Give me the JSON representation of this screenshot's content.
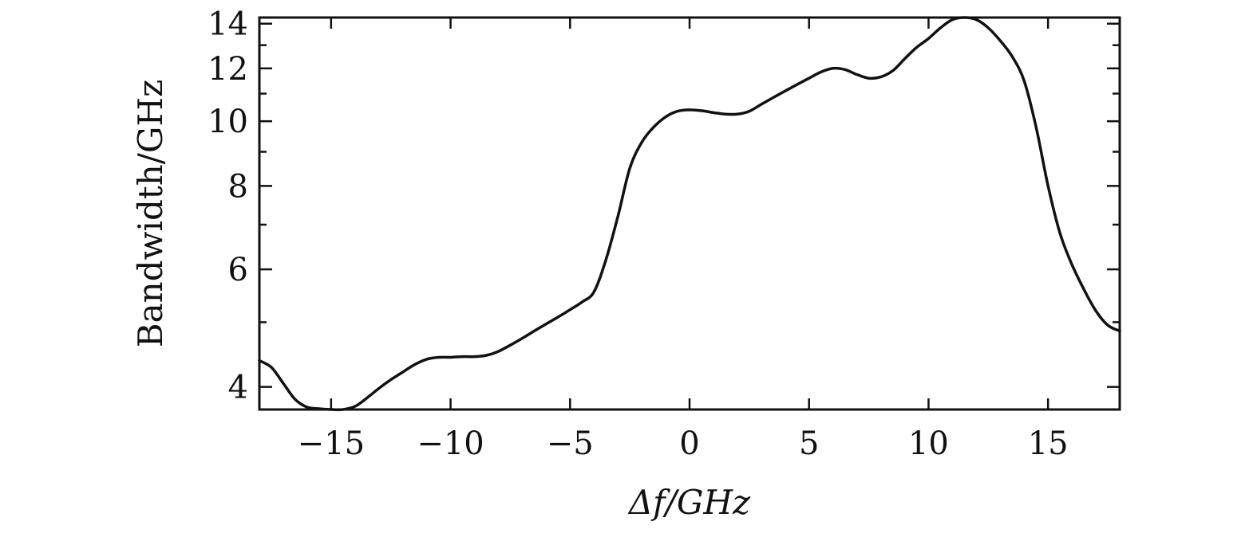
{
  "chart_data": {
    "type": "line",
    "title": "",
    "xlabel": "Δf/GHz",
    "ylabel": "Bandwidth/GHz",
    "xlim": [
      -18,
      18
    ],
    "ylim": [
      3.7,
      14.3
    ],
    "yscale": "log",
    "grid": false,
    "x_ticks": [
      -15,
      -10,
      -5,
      0,
      5,
      10,
      15
    ],
    "x_tick_labels": [
      "−15",
      "−10",
      "−5",
      "0",
      "5",
      "10",
      "15"
    ],
    "y_major_ticks": [
      4,
      6,
      8,
      10,
      12,
      14
    ],
    "y_tick_labels": [
      "4",
      "6",
      "8",
      "10",
      "12",
      "14"
    ],
    "y_minor_ticks": [
      5,
      7,
      9,
      11,
      13
    ],
    "series": [
      {
        "x": [
          -18,
          -17.5,
          -17,
          -16.5,
          -16,
          -15.5,
          -15,
          -14.5,
          -14,
          -13.5,
          -13,
          -12.5,
          -12,
          -11.5,
          -11,
          -10.5,
          -10,
          -9.5,
          -9,
          -8.5,
          -8,
          -7.5,
          -7,
          -6.5,
          -6,
          -5.5,
          -5,
          -4.5,
          -4,
          -3.5,
          -3,
          -2.5,
          -2,
          -1.5,
          -1,
          -0.5,
          0,
          0.5,
          1,
          1.5,
          2,
          2.5,
          3,
          3.5,
          4,
          4.5,
          5,
          5.5,
          6,
          6.5,
          7,
          7.5,
          8,
          8.5,
          9,
          9.5,
          10,
          10.5,
          11,
          11.5,
          12,
          12.5,
          13,
          13.5,
          14,
          14.5,
          15,
          15.5,
          16,
          16.5,
          17,
          17.5,
          18
        ],
        "values": [
          4.38,
          4.28,
          4.05,
          3.83,
          3.73,
          3.71,
          3.7,
          3.7,
          3.74,
          3.85,
          3.98,
          4.1,
          4.21,
          4.32,
          4.4,
          4.43,
          4.43,
          4.44,
          4.44,
          4.46,
          4.52,
          4.62,
          4.73,
          4.85,
          4.97,
          5.09,
          5.22,
          5.36,
          5.55,
          6.2,
          7.2,
          8.5,
          9.3,
          9.8,
          10.15,
          10.35,
          10.4,
          10.37,
          10.3,
          10.25,
          10.25,
          10.35,
          10.6,
          10.85,
          11.1,
          11.35,
          11.6,
          11.85,
          12.0,
          11.95,
          11.75,
          11.6,
          11.65,
          11.9,
          12.4,
          12.9,
          13.3,
          13.8,
          14.2,
          14.3,
          14.2,
          13.8,
          13.2,
          12.5,
          11.5,
          9.8,
          8.0,
          6.8,
          6.1,
          5.6,
          5.2,
          4.95,
          4.85
        ]
      }
    ]
  }
}
